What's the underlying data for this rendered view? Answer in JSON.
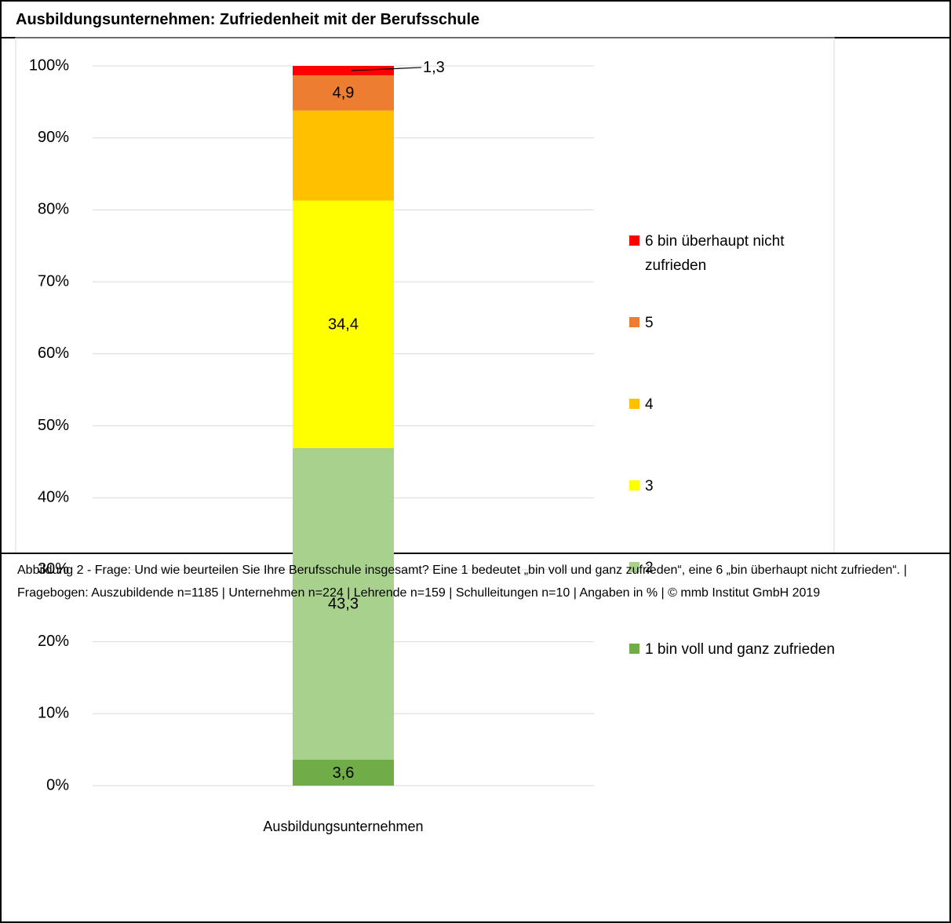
{
  "chart_data": {
    "type": "stacked_bar",
    "title": "Ausbildungsunternehmen: Zufriedenheit mit der Berufsschule",
    "categories": [
      "Ausbildungsunternehmen"
    ],
    "series": [
      {
        "name": "1 bin voll und ganz zufrieden",
        "color": "#70ad47",
        "values": [
          3.6
        ],
        "value_labels": [
          "3,6"
        ]
      },
      {
        "name": "2",
        "color": "#a9d18e",
        "values": [
          43.3
        ],
        "value_labels": [
          "43,3"
        ]
      },
      {
        "name": "3",
        "color": "#ffff00",
        "values": [
          34.4
        ],
        "value_labels": [
          "34,4"
        ]
      },
      {
        "name": "4",
        "color": "#ffc000",
        "values": [
          12.5
        ]
      },
      {
        "name": "5",
        "color": "#ed7d31",
        "values": [
          4.9
        ],
        "value_labels": [
          "4,9"
        ]
      },
      {
        "name": "6 bin überhaupt nicht zufrieden",
        "color": "#ff0000",
        "values": [
          1.3
        ],
        "value_labels": [
          "1,3"
        ]
      }
    ],
    "ylim": [
      0,
      100
    ],
    "yticks": [
      {
        "value": 0,
        "label": "0%"
      },
      {
        "value": 10,
        "label": "10%"
      },
      {
        "value": 20,
        "label": "20%"
      },
      {
        "value": 30,
        "label": "30%"
      },
      {
        "value": 40,
        "label": "40%"
      },
      {
        "value": 50,
        "label": "50%"
      },
      {
        "value": 60,
        "label": "60%"
      },
      {
        "value": 70,
        "label": "70%"
      },
      {
        "value": 80,
        "label": "80%"
      },
      {
        "value": 90,
        "label": "90%"
      },
      {
        "value": 100,
        "label": "100%"
      }
    ],
    "grid": true,
    "legend": "right",
    "caption": "Abbildung 2 - Frage: Und wie beurteilen Sie Ihre Berufsschule insgesamt? Eine 1 bedeutet „bin voll und ganz zufrieden“, eine 6 „bin überhaupt nicht zufrieden“. | Fragebogen: Auszubildende n=1185 | Unternehmen n=224 | Lehrende n=159 | Schulleitungen n=10 | Angaben in % | © mmb Institut GmbH 2019"
  }
}
